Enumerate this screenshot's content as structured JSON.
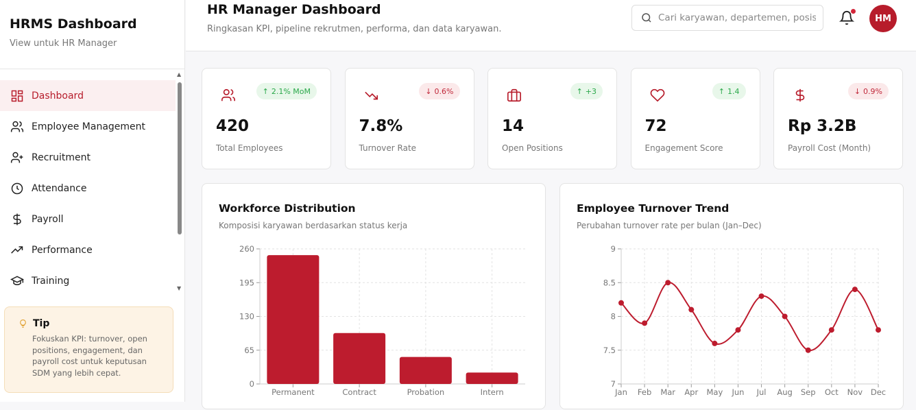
{
  "sidebar": {
    "title": "HRMS Dashboard",
    "subtitle": "View untuk HR Manager",
    "items": [
      {
        "label": "Dashboard",
        "icon": "dashboard-icon",
        "active": true
      },
      {
        "label": "Employee Management",
        "icon": "users-icon"
      },
      {
        "label": "Recruitment",
        "icon": "user-plus-icon"
      },
      {
        "label": "Attendance",
        "icon": "clock-icon"
      },
      {
        "label": "Payroll",
        "icon": "dollar-icon"
      },
      {
        "label": "Performance",
        "icon": "trending-up-icon"
      },
      {
        "label": "Training",
        "icon": "graduation-cap-icon"
      }
    ],
    "tip": {
      "title": "Tip",
      "text": "Fokuskan KPI: turnover, open positions, engagement, dan payroll cost untuk keputusan SDM yang lebih cepat."
    }
  },
  "header": {
    "title": "HR Manager Dashboard",
    "subtitle": "Ringkasan KPI, pipeline rekrutmen, performa, dan data karyawan.",
    "search_placeholder": "Cari karyawan, departemen, posisi...",
    "avatar": "HM"
  },
  "kpis": [
    {
      "value": "420",
      "label": "Total Employees",
      "badge": "2.1% MoM",
      "trend": "up",
      "icon": "users-icon"
    },
    {
      "value": "7.8%",
      "label": "Turnover Rate",
      "badge": "0.6%",
      "trend": "down",
      "icon": "trending-down-icon"
    },
    {
      "value": "14",
      "label": "Open Positions",
      "badge": "+3",
      "trend": "up",
      "icon": "briefcase-icon"
    },
    {
      "value": "72",
      "label": "Engagement Score",
      "badge": "1.4",
      "trend": "up",
      "icon": "heart-icon"
    },
    {
      "value": "Rp 3.2B",
      "label": "Payroll Cost (Month)",
      "badge": "0.9%",
      "trend": "down",
      "icon": "dollar-icon"
    }
  ],
  "colors": {
    "accent": "#b71c2b",
    "bar": "#bd1c2e",
    "up": "#2aa84a",
    "down": "#c0283a"
  },
  "chart_data": [
    {
      "type": "bar",
      "title": "Workforce Distribution",
      "subtitle": "Komposisi karyawan berdasarkan status kerja",
      "categories": [
        "Permanent",
        "Contract",
        "Probation",
        "Intern"
      ],
      "values": [
        248,
        98,
        52,
        22
      ],
      "ylim": [
        0,
        260
      ],
      "yticks": [
        0,
        65,
        130,
        195,
        260
      ],
      "grid": true
    },
    {
      "type": "line",
      "title": "Employee Turnover Trend",
      "subtitle": "Perubahan turnover rate per bulan (Jan–Dec)",
      "categories": [
        "Jan",
        "Feb",
        "Mar",
        "Apr",
        "May",
        "Jun",
        "Jul",
        "Aug",
        "Sep",
        "Oct",
        "Nov",
        "Dec"
      ],
      "values": [
        8.2,
        7.9,
        8.5,
        8.1,
        7.6,
        7.8,
        8.3,
        8.0,
        7.5,
        7.8,
        8.4,
        7.8
      ],
      "ylim": [
        7,
        9
      ],
      "yticks": [
        7,
        7.5,
        8,
        8.5,
        9
      ],
      "grid": true,
      "smooth": true
    }
  ]
}
